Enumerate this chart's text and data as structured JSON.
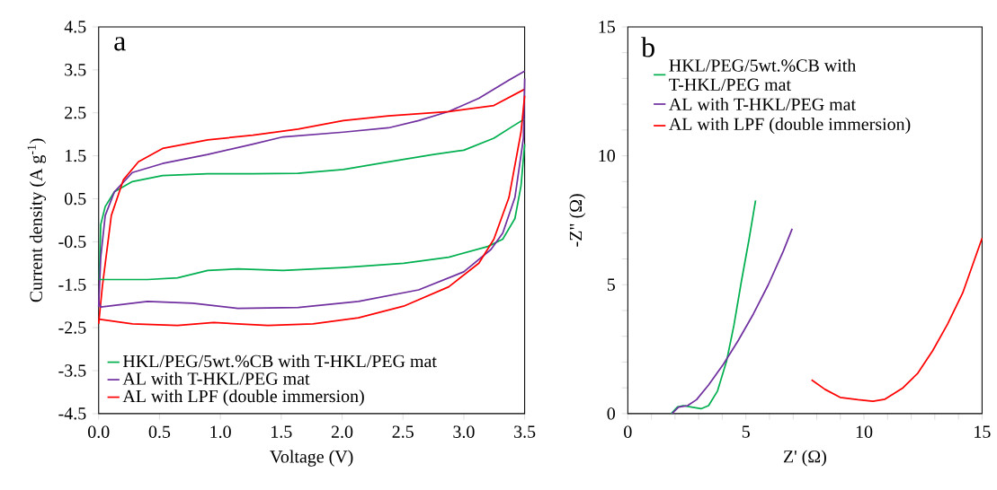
{
  "chart_data": [
    {
      "type": "line",
      "xlabel": "Voltage (V)",
      "ylabel": "Current density (A g$^{-1}$)",
      "annotations": [
        "a"
      ],
      "legend": "bottom left",
      "xlim": [
        0,
        3.5
      ],
      "ylim": [
        -4.5,
        4.5
      ],
      "xticks": [
        {
          "value": 0,
          "label": "0.0"
        },
        0.5,
        {
          "value": 1,
          "label": "1.0"
        },
        1.5,
        {
          "value": 2,
          "label": "2.0"
        },
        2.5,
        {
          "value": 3,
          "label": "3.0"
        },
        3.5
      ],
      "yticks": [
        -4.5,
        -3.5,
        -2.5,
        -1.5,
        -0.5,
        0.5,
        1.5,
        2.5,
        3.5,
        4.5
      ],
      "series": [
        {
          "name": "HKL/PEG/5wt.%CB with T-HKL/PEG mat",
          "color": "#00b050",
          "x": [
            0.005,
            0.017,
            0.054,
            0.129,
            0.277,
            0.525,
            0.896,
            1.267,
            1.638,
            2.01,
            2.381,
            2.752,
            3.0,
            3.247,
            3.42,
            3.5
          ],
          "values": [
            -1.38,
            -0.1,
            0.32,
            0.66,
            0.9,
            1.04,
            1.08,
            1.08,
            1.09,
            1.18,
            1.36,
            1.53,
            1.63,
            1.91,
            2.22,
            2.36
          ]
        },
        {
          "name": "AL with T-HKL/PEG mat",
          "color": "#7030a0",
          "x": [
            0.0,
            0.017,
            0.054,
            0.129,
            0.277,
            0.525,
            0.896,
            1.267,
            1.515,
            2.01,
            2.381,
            2.629,
            2.876,
            3.124,
            3.371,
            3.5
          ],
          "values": [
            -2.02,
            -0.86,
            0.11,
            0.66,
            1.11,
            1.32,
            1.53,
            1.77,
            1.94,
            2.05,
            2.15,
            2.32,
            2.53,
            2.84,
            3.26,
            3.47
          ]
        },
        {
          "name": "AL with LPF (double immersion)",
          "color": "#ff0000",
          "x": [
            0.0,
            0.03,
            0.104,
            0.203,
            0.327,
            0.525,
            0.896,
            1.267,
            1.638,
            2.01,
            2.381,
            2.876,
            3.247,
            3.5
          ],
          "values": [
            -2.41,
            -1.55,
            0.11,
            0.94,
            1.36,
            1.67,
            1.87,
            1.98,
            2.12,
            2.32,
            2.43,
            2.53,
            2.67,
            3.05
          ]
        },
        {
          "color": "#00b050",
          "x": [
            3.5,
            3.47,
            3.42,
            3.32,
            3.198,
            2.876,
            2.505,
            2.01,
            1.515,
            1.143,
            0.896,
            0.648,
            0.401,
            0.005
          ],
          "values": [
            1.77,
            0.8,
            0.04,
            -0.44,
            -0.61,
            -0.86,
            -1.0,
            -1.1,
            -1.17,
            -1.13,
            -1.17,
            -1.34,
            -1.38,
            -1.38
          ]
        },
        {
          "color": "#7030a0",
          "x": [
            3.5,
            3.49,
            3.42,
            3.32,
            3.223,
            3.0,
            2.629,
            2.134,
            1.64,
            1.143,
            0.772,
            0.401,
            0.017,
            0.0
          ],
          "values": [
            3.3,
            1.91,
            0.53,
            -0.3,
            -0.68,
            -1.2,
            -1.62,
            -1.89,
            -2.03,
            -2.05,
            -1.93,
            -1.89,
            -2.02,
            -1.9
          ]
        },
        {
          "color": "#ff0000",
          "x": [
            3.5,
            3.47,
            3.371,
            3.247,
            3.124,
            2.876,
            2.505,
            2.134,
            1.762,
            1.391,
            0.945,
            0.648,
            0.277,
            0.0
          ],
          "values": [
            2.9,
            2.05,
            0.53,
            -0.44,
            -1.0,
            -1.55,
            -2.0,
            -2.27,
            -2.41,
            -2.45,
            -2.38,
            -2.45,
            -2.41,
            -2.3
          ]
        }
      ]
    },
    {
      "type": "line",
      "xlabel": "Z' (Ω)",
      "ylabel": "-Z\" (Ω)",
      "annotations": [
        "b"
      ],
      "legend": "top left",
      "xlim": [
        0,
        15
      ],
      "ylim": [
        0,
        15
      ],
      "xticks": [
        0,
        {
          "value": 1,
          "label": null
        },
        {
          "value": 2,
          "label": null
        },
        {
          "value": 3,
          "label": null
        },
        {
          "value": 4,
          "label": null
        },
        5,
        {
          "value": 6,
          "label": null
        },
        {
          "value": 7,
          "label": null
        },
        {
          "value": 8,
          "label": null
        },
        {
          "value": 9,
          "label": null
        },
        10,
        {
          "value": 11,
          "label": null
        },
        {
          "value": 12,
          "label": null
        },
        {
          "value": 13,
          "label": null
        },
        {
          "value": 14,
          "label": null
        },
        15
      ],
      "yticks": [
        0,
        {
          "value": 1,
          "label": null
        },
        {
          "value": 2,
          "label": null
        },
        {
          "value": 3,
          "label": null
        },
        {
          "value": 4,
          "label": null
        },
        5,
        {
          "value": 6,
          "label": null
        },
        {
          "value": 7,
          "label": null
        },
        {
          "value": 8,
          "label": null
        },
        {
          "value": 9,
          "label": null
        },
        10,
        {
          "value": 11,
          "label": null
        },
        {
          "value": 12,
          "label": null
        },
        {
          "value": 13,
          "label": null
        },
        {
          "value": 14,
          "label": null
        },
        15
      ],
      "series": [
        {
          "name": "HKL/PEG/5wt.%CB with T-HKL/PEG mat",
          "color": "#00b050",
          "x": [
            1.84,
            2.09,
            2.34,
            2.72,
            3.1,
            3.42,
            3.8,
            4.18,
            4.49,
            4.81,
            5.13,
            5.41
          ],
          "values": [
            0,
            0.25,
            0.31,
            0.25,
            0.19,
            0.31,
            0.88,
            2.03,
            3.41,
            5.13,
            6.74,
            8.27
          ]
        },
        {
          "name": "AL with T-HKL/PEG mat",
          "color": "#7030a0",
          "x": [
            1.87,
            2.15,
            2.53,
            2.91,
            3.42,
            4.05,
            4.68,
            5.32,
            5.95,
            6.58,
            6.96
          ],
          "values": [
            0,
            0.25,
            0.31,
            0.54,
            1.11,
            1.92,
            2.84,
            3.87,
            5.0,
            6.29,
            7.17
          ]
        },
        {
          "name": "AL with LPF (double immersion)",
          "color": "#ff0000",
          "x": [
            7.78,
            8.35,
            8.99,
            9.75,
            10.38,
            10.89,
            11.65,
            12.28,
            12.91,
            13.54,
            14.18,
            15.0
          ],
          "values": [
            1.31,
            0.94,
            0.63,
            0.54,
            0.48,
            0.56,
            1.0,
            1.57,
            2.44,
            3.47,
            4.68,
            6.8
          ]
        }
      ]
    }
  ]
}
